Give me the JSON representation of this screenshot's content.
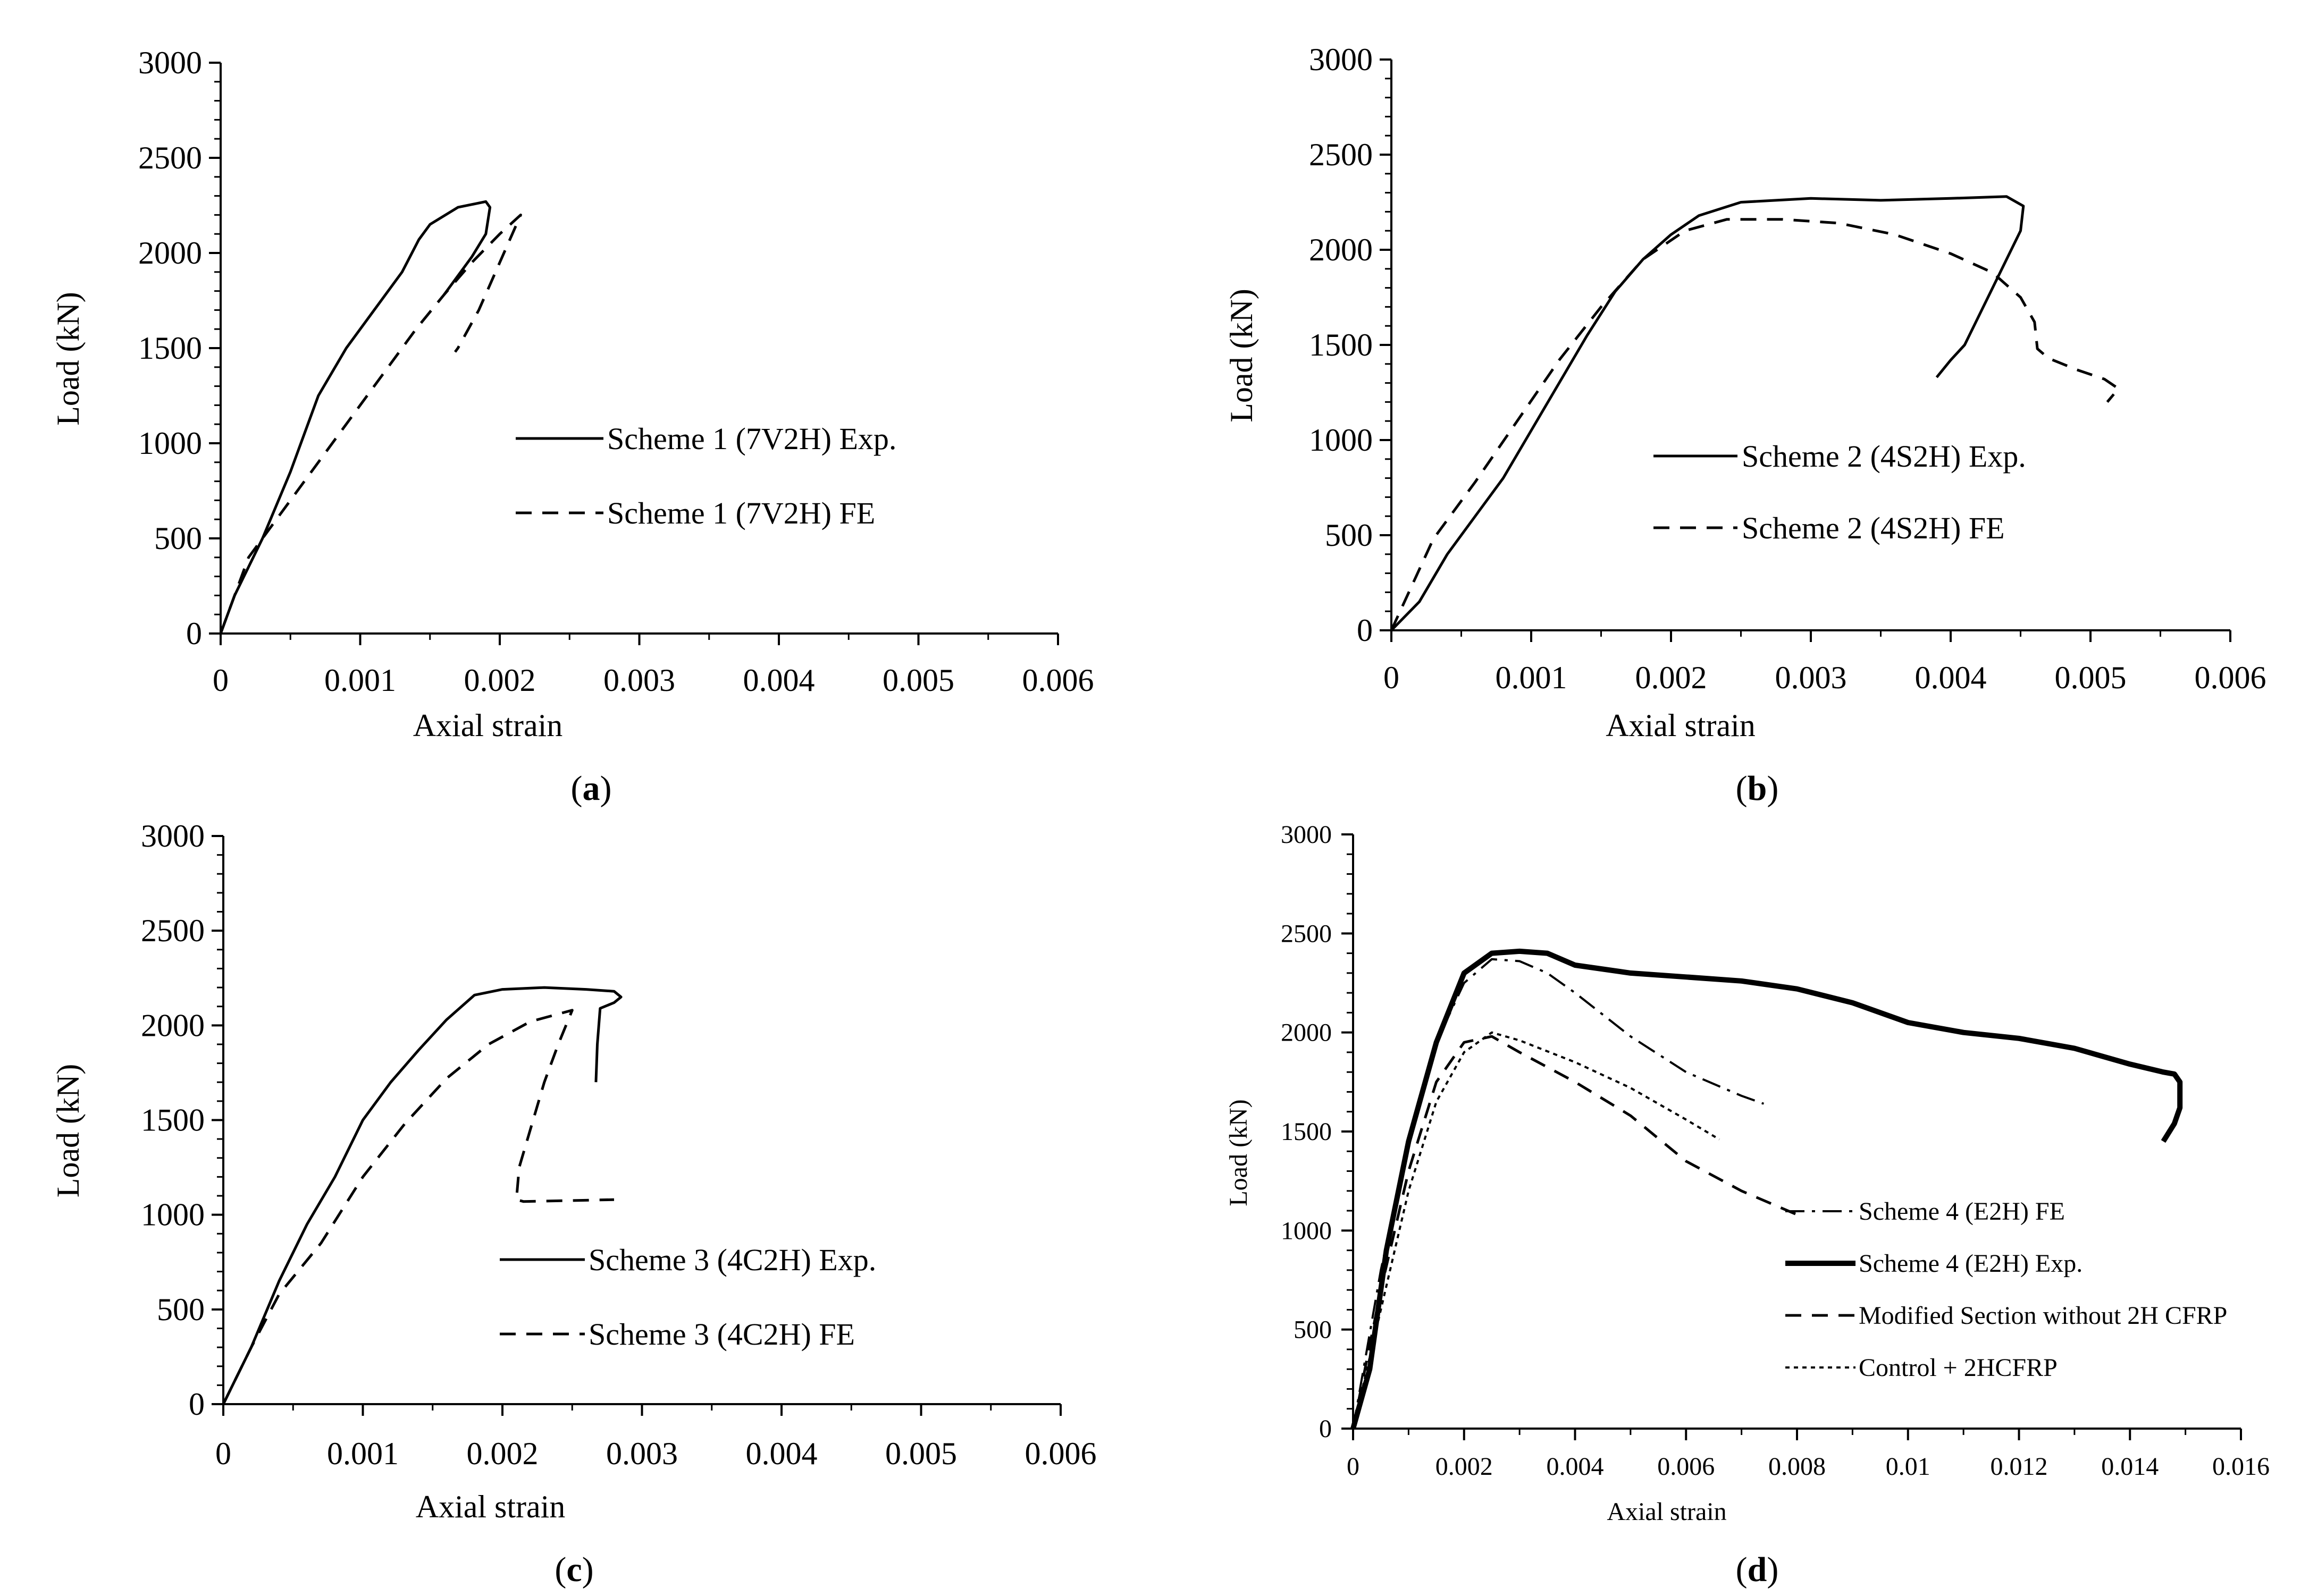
{
  "chart_data": [
    {
      "type": "line",
      "panel_label_prefix": "(",
      "panel_label_letter": "a",
      "panel_label_suffix": ")",
      "xlabel": "Axial strain",
      "ylabel": "Load (kN)",
      "xlim": [
        0,
        0.006
      ],
      "ylim": [
        0,
        3000
      ],
      "x_ticks": [
        0,
        0.001,
        0.002,
        0.003,
        0.004,
        0.005,
        0.006
      ],
      "x_tick_labels": [
        "0",
        "0.001",
        "0.002",
        "0.003",
        "0.004",
        "0.005",
        "0.006"
      ],
      "y_ticks": [
        0,
        500,
        1000,
        1500,
        2000,
        2500,
        3000
      ],
      "y_tick_labels": [
        "0",
        "500",
        "1000",
        "1500",
        "2000",
        "2500",
        "3000"
      ],
      "legend_position": "center-right",
      "series": [
        {
          "name": "Scheme 1 (7V2H) Exp.",
          "style": "solid",
          "x": [
            0,
            0.0001,
            0.0003,
            0.0005,
            0.0006,
            0.0007,
            0.0009,
            0.0011,
            0.0013,
            0.00142,
            0.0015,
            0.0017,
            0.0019,
            0.00193,
            0.0019,
            0.0018,
            0.0017,
            0.0016
          ],
          "y": [
            0,
            200,
            500,
            850,
            1050,
            1250,
            1500,
            1700,
            1900,
            2070,
            2150,
            2240,
            2270,
            2240,
            2100,
            1980,
            1880,
            1780
          ]
        },
        {
          "name": "Scheme 1 (7V2H) FE",
          "style": "dashed",
          "x": [
            0,
            0.0002,
            0.0004,
            0.0006,
            0.0008,
            0.001,
            0.0012,
            0.0014,
            0.0016,
            0.0018,
            0.002,
            0.00215,
            0.002,
            0.00185,
            0.0017,
            0.00168
          ],
          "y": [
            0,
            400,
            600,
            800,
            1000,
            1200,
            1400,
            1600,
            1780,
            1950,
            2100,
            2200,
            1950,
            1700,
            1500,
            1480
          ]
        }
      ]
    },
    {
      "type": "line",
      "panel_label_prefix": "(",
      "panel_label_letter": "b",
      "panel_label_suffix": ")",
      "xlabel": "Axial strain",
      "ylabel": "Load (kN)",
      "xlim": [
        0,
        0.006
      ],
      "ylim": [
        0,
        3000
      ],
      "x_ticks": [
        0,
        0.001,
        0.002,
        0.003,
        0.004,
        0.005,
        0.006
      ],
      "x_tick_labels": [
        "0",
        "0.001",
        "0.002",
        "0.003",
        "0.004",
        "0.005",
        "0.006"
      ],
      "y_ticks": [
        0,
        500,
        1000,
        1500,
        2000,
        2500,
        3000
      ],
      "y_tick_labels": [
        "0",
        "500",
        "1000",
        "1500",
        "2000",
        "2500",
        "3000"
      ],
      "legend_position": "bottom-right",
      "series": [
        {
          "name": "Scheme 2 (4S2H) Exp.",
          "style": "solid",
          "x": [
            0,
            0.0002,
            0.0004,
            0.0006,
            0.0008,
            0.001,
            0.0012,
            0.0014,
            0.0016,
            0.0018,
            0.002,
            0.0022,
            0.0025,
            0.003,
            0.0035,
            0.004,
            0.0044,
            0.00452,
            0.0045,
            0.0044,
            0.0043,
            0.0042,
            0.0041,
            0.004,
            0.0039
          ],
          "y": [
            0,
            150,
            400,
            600,
            800,
            1050,
            1300,
            1550,
            1780,
            1950,
            2080,
            2180,
            2250,
            2270,
            2260,
            2270,
            2280,
            2230,
            2100,
            1950,
            1800,
            1650,
            1500,
            1420,
            1330
          ]
        },
        {
          "name": "Scheme 2 (4S2H) FE",
          "style": "dashed",
          "x": [
            0,
            0.0003,
            0.0006,
            0.0009,
            0.0012,
            0.0015,
            0.0018,
            0.0021,
            0.0024,
            0.0028,
            0.0032,
            0.0036,
            0.004,
            0.0043,
            0.0045,
            0.0046,
            0.00462,
            0.0047,
            0.0049,
            0.0051,
            0.0052,
            0.00512
          ],
          "y": [
            0,
            480,
            780,
            1100,
            1420,
            1700,
            1950,
            2100,
            2160,
            2160,
            2140,
            2080,
            1980,
            1880,
            1750,
            1620,
            1480,
            1430,
            1370,
            1320,
            1270,
            1200
          ]
        }
      ]
    },
    {
      "type": "line",
      "panel_label_prefix": "(",
      "panel_label_letter": "c",
      "panel_label_suffix": ")",
      "xlabel": "Axial strain",
      "ylabel": "Load (kN)",
      "xlim": [
        0,
        0.006
      ],
      "ylim": [
        0,
        3000
      ],
      "x_ticks": [
        0,
        0.001,
        0.002,
        0.003,
        0.004,
        0.005,
        0.006
      ],
      "x_tick_labels": [
        "0",
        "0.001",
        "0.002",
        "0.003",
        "0.004",
        "0.005",
        "0.006"
      ],
      "y_ticks": [
        0,
        500,
        1000,
        1500,
        2000,
        2500,
        3000
      ],
      "y_tick_labels": [
        "0",
        "500",
        "1000",
        "1500",
        "2000",
        "2500",
        "3000"
      ],
      "legend_position": "bottom-right",
      "series": [
        {
          "name": "Scheme 3 (4C2H) Exp.",
          "style": "solid",
          "x": [
            0,
            0.0002,
            0.0004,
            0.0006,
            0.0008,
            0.001,
            0.0012,
            0.0014,
            0.0016,
            0.0018,
            0.002,
            0.0023,
            0.0026,
            0.0028,
            0.00285,
            0.0028,
            0.0027,
            0.00268,
            0.00267
          ],
          "y": [
            0,
            300,
            650,
            950,
            1200,
            1500,
            1700,
            1870,
            2030,
            2160,
            2190,
            2200,
            2190,
            2180,
            2150,
            2120,
            2090,
            1900,
            1700
          ]
        },
        {
          "name": "Scheme 3 (4C2H) FE",
          "style": "dashed",
          "x": [
            0,
            0.0002,
            0.0004,
            0.0007,
            0.001,
            0.0013,
            0.0016,
            0.0019,
            0.0022,
            0.0025,
            0.0024,
            0.0023,
            0.0022,
            0.00212,
            0.0021,
            0.00215,
            0.0025,
            0.0028
          ],
          "y": [
            0,
            300,
            580,
            850,
            1200,
            1480,
            1720,
            1900,
            2020,
            2080,
            1900,
            1700,
            1450,
            1250,
            1080,
            1070,
            1075,
            1080
          ]
        }
      ]
    },
    {
      "type": "line",
      "panel_label_prefix": "(",
      "panel_label_letter": "d",
      "panel_label_suffix": ")",
      "xlabel": "Axial strain",
      "ylabel": "Load (kN)",
      "xlim": [
        0,
        0.016
      ],
      "ylim": [
        0,
        3000
      ],
      "x_ticks": [
        0,
        0.002,
        0.004,
        0.006,
        0.008,
        0.01,
        0.012,
        0.014,
        0.016
      ],
      "x_tick_labels": [
        "0",
        "0.002",
        "0.004",
        "0.006",
        "0.008",
        "0.01",
        "0.012",
        "0.014",
        "0.016"
      ],
      "y_ticks": [
        0,
        500,
        1000,
        1500,
        2000,
        2500,
        3000
      ],
      "y_tick_labels": [
        "0",
        "500",
        "1000",
        "1500",
        "2000",
        "2500",
        "3000"
      ],
      "legend_position": "bottom-right",
      "series": [
        {
          "name": "Scheme 4 (E2H) FE",
          "style": "dashdot",
          "x": [
            0,
            0.0005,
            0.001,
            0.0015,
            0.002,
            0.0025,
            0.003,
            0.0035,
            0.004,
            0.005,
            0.006,
            0.007,
            0.0074
          ],
          "y": [
            0,
            800,
            1450,
            1950,
            2250,
            2370,
            2360,
            2300,
            2200,
            1980,
            1800,
            1680,
            1640
          ]
        },
        {
          "name": "Scheme 4 (E2H) Exp.",
          "style": "thick",
          "x": [
            0,
            0.0003,
            0.0006,
            0.001,
            0.0015,
            0.002,
            0.0025,
            0.003,
            0.0035,
            0.004,
            0.005,
            0.006,
            0.007,
            0.008,
            0.009,
            0.01,
            0.011,
            0.012,
            0.013,
            0.014,
            0.0146,
            0.0148,
            0.0149,
            0.0149,
            0.0148,
            0.0146
          ],
          "y": [
            0,
            300,
            900,
            1450,
            1950,
            2300,
            2400,
            2410,
            2400,
            2340,
            2300,
            2280,
            2260,
            2220,
            2150,
            2050,
            2000,
            1970,
            1920,
            1840,
            1800,
            1790,
            1750,
            1620,
            1540,
            1450
          ]
        },
        {
          "name": "Modified Section without 2H CFRP",
          "style": "dashed",
          "x": [
            0,
            0.0005,
            0.001,
            0.0015,
            0.002,
            0.0025,
            0.003,
            0.004,
            0.005,
            0.006,
            0.007,
            0.008
          ],
          "y": [
            0,
            700,
            1300,
            1750,
            1950,
            1980,
            1900,
            1750,
            1580,
            1350,
            1200,
            1080
          ]
        },
        {
          "name": "Control + 2HCFRP",
          "style": "dotted",
          "x": [
            0,
            0.0005,
            0.001,
            0.0015,
            0.002,
            0.0025,
            0.003,
            0.004,
            0.005,
            0.006,
            0.0066
          ],
          "y": [
            0,
            600,
            1200,
            1650,
            1900,
            2000,
            1960,
            1850,
            1720,
            1560,
            1460
          ]
        }
      ]
    }
  ]
}
